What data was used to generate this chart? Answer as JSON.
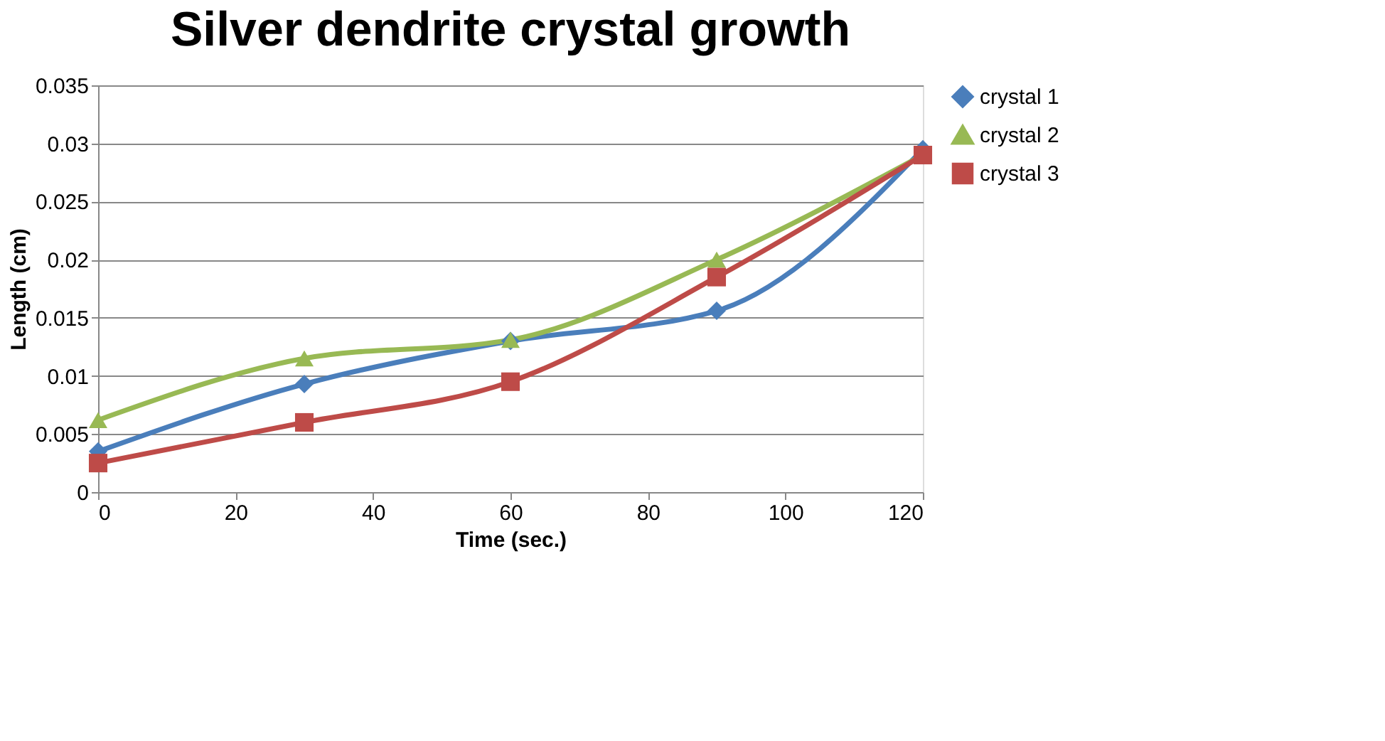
{
  "chart_data": {
    "type": "line",
    "title": "Silver dendrite crystal growth",
    "xlabel": "Time (sec.)",
    "ylabel": "Length (cm)",
    "x": [
      0,
      30,
      60,
      90,
      120
    ],
    "series": [
      {
        "name": "crystal 1",
        "color": "#4a7ebb",
        "marker": "diamond",
        "values": [
          0.0035,
          0.0093,
          0.013,
          0.0156,
          0.0295
        ]
      },
      {
        "name": "crystal 2",
        "color": "#98b954",
        "marker": "triangle",
        "values": [
          0.0062,
          0.0115,
          0.0131,
          0.02,
          0.029
        ]
      },
      {
        "name": "crystal 3",
        "color": "#be4b48",
        "marker": "square",
        "values": [
          0.0025,
          0.006,
          0.0095,
          0.0185,
          0.029
        ]
      }
    ],
    "xlim": [
      0,
      120
    ],
    "xticks": [
      0,
      20,
      40,
      60,
      80,
      100,
      120
    ],
    "ylim": [
      0,
      0.035
    ],
    "yticks": [
      0,
      0.005,
      0.01,
      0.015,
      0.02,
      0.025,
      0.03,
      0.035
    ],
    "grid": "y",
    "legend": "right",
    "line_style": "solid"
  }
}
